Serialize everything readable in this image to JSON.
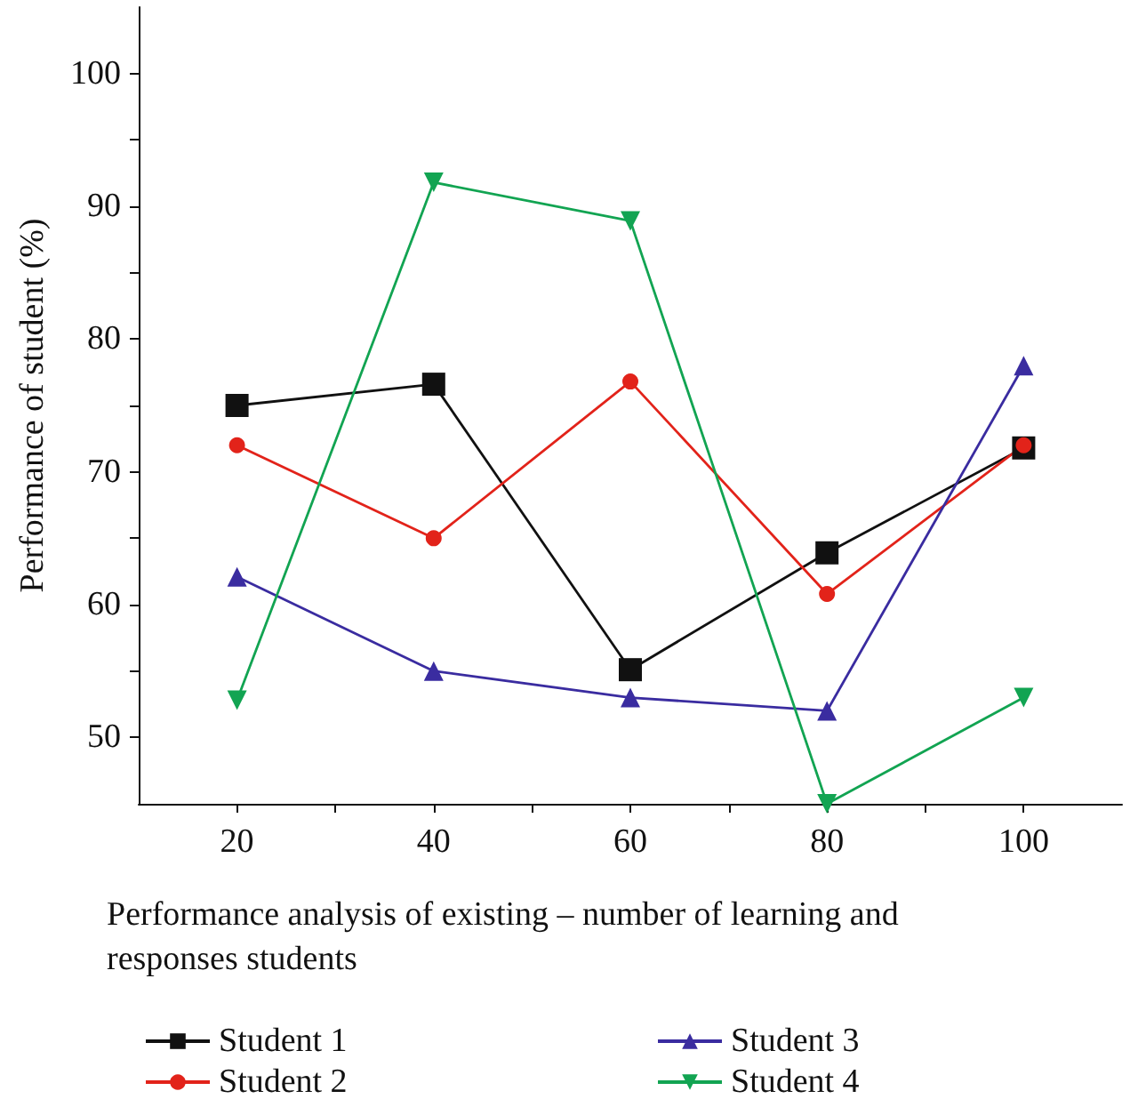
{
  "chart_data": {
    "type": "line",
    "xlabel": "Performance analysis of existing – number of learning and responses students",
    "ylabel": "Performance of student (%)",
    "x": [
      20,
      40,
      60,
      80,
      100
    ],
    "series": [
      {
        "name": "Student 1",
        "color": "#111111",
        "marker": "square",
        "values": [
          75,
          76.6,
          55.1,
          63.9,
          71.8
        ]
      },
      {
        "name": "Student 2",
        "color": "#e2231a",
        "marker": "circle",
        "values": [
          72,
          65,
          76.8,
          60.8,
          72
        ]
      },
      {
        "name": "Student 3",
        "color": "#3a2ca0",
        "marker": "triangle",
        "values": [
          62.1,
          55,
          53,
          52,
          78
        ]
      },
      {
        "name": "Student 4",
        "color": "#12a452",
        "marker": "triangle-down",
        "values": [
          52.8,
          91.8,
          88.9,
          45,
          53
        ]
      }
    ],
    "xlim": [
      10,
      110
    ],
    "xticks": [
      20,
      {
        "value": 30,
        "label": null
      },
      40,
      {
        "value": 50,
        "label": null
      },
      60,
      {
        "value": 70,
        "label": null
      },
      80,
      {
        "value": 90,
        "label": null
      },
      100
    ],
    "ylim": [
      45,
      105
    ],
    "yticks": [
      50,
      {
        "value": 55,
        "label": null
      },
      60,
      {
        "value": 65,
        "label": null
      },
      70,
      {
        "value": 75,
        "label": null
      },
      80,
      {
        "value": 85,
        "label": null
      },
      90,
      {
        "value": 95,
        "label": null
      },
      100
    ],
    "grid": false,
    "legend": "bottom"
  }
}
